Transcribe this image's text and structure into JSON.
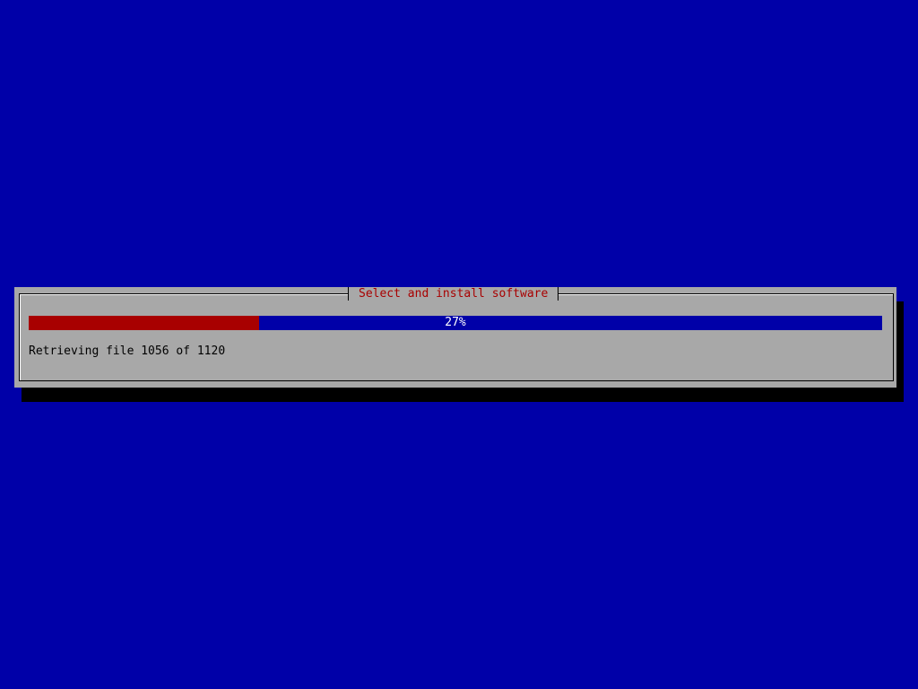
{
  "dialog": {
    "title": "Select and install software",
    "progress": {
      "percent": 27,
      "label": "27%"
    },
    "status": "Retrieving file 1056 of 1120"
  },
  "colors": {
    "background": "#0000a8",
    "dialog": "#a8a8a8",
    "progress_fill": "#a80000",
    "title_text": "#a80000"
  }
}
